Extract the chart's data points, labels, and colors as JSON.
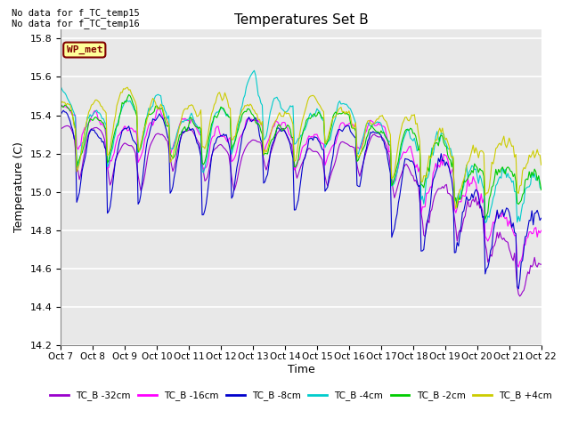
{
  "title": "Temperatures Set B",
  "xlabel": "Time",
  "ylabel": "Temperature (C)",
  "ylim": [
    14.2,
    15.85
  ],
  "xlim": [
    0,
    360
  ],
  "x_tick_positions": [
    0,
    24,
    48,
    72,
    96,
    120,
    144,
    168,
    192,
    216,
    240,
    264,
    288,
    312,
    336,
    360
  ],
  "x_tick_labels": [
    "Oct 7",
    "Oct 8",
    "Oct 9",
    "Oct 10",
    "Oct 11",
    "Oct 12",
    "Oct 13",
    "Oct 14",
    "Oct 15",
    "Oct 16",
    "Oct 17",
    "Oct 18",
    "Oct 19",
    "Oct 20",
    "Oct 21",
    "Oct 22"
  ],
  "yticks": [
    14.2,
    14.4,
    14.6,
    14.8,
    15.0,
    15.2,
    15.4,
    15.6,
    15.8
  ],
  "bg_color": "#e8e8e8",
  "fig_color": "#ffffff",
  "grid_color": "#ffffff",
  "annotation1": "No data for f_TC_temp15",
  "annotation2": "No data for f_TC_temp16",
  "wp_met_label": "WP_met",
  "wp_met_bg": "#ffff99",
  "wp_met_fg": "#800000",
  "legend_labels": [
    "TC_B -32cm",
    "TC_B -16cm",
    "TC_B -8cm",
    "TC_B -4cm",
    "TC_B -2cm",
    "TC_B +4cm"
  ],
  "line_colors": [
    "#9900cc",
    "#ff00ff",
    "#0000cc",
    "#00cccc",
    "#00cc00",
    "#cccc00"
  ],
  "seed": 42,
  "n_points": 361
}
